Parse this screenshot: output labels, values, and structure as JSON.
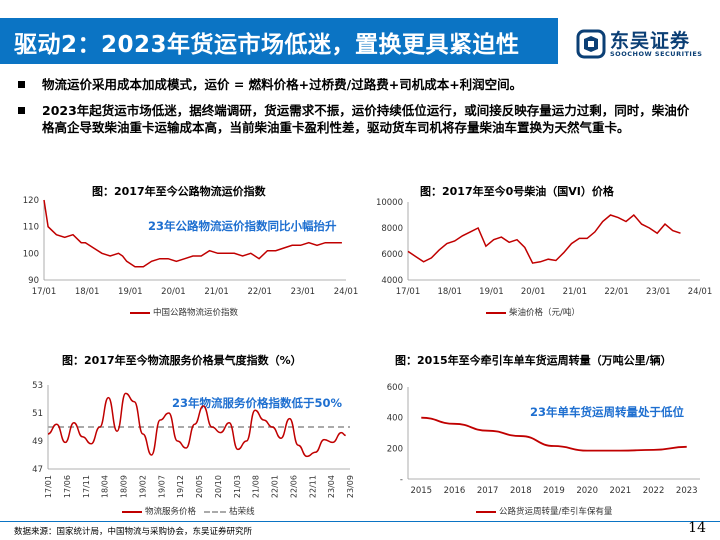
{
  "header": {
    "title": "驱动2：2023年货运市场低迷，置换更具紧迫性",
    "logo_cn": "东吴证券",
    "logo_en": "SOOCHOW SECURITIES"
  },
  "bullets": [
    "物流运价采用成本加成模式，运价 =  燃料价格+过桥费/过路费+司机成本+利润空间。",
    "2023年起货运市场低迷，据终端调研，货运需求不振，运价持续低位运行，或间接反映存量运力过剩，同时，柴油价格高企导致柴油重卡运输成本高，当前柴油重卡盈利性差，驱动货车司机将存量柴油车置换为天然气重卡。"
  ],
  "charts": {
    "c1": {
      "title": "图：2017年至今公路物流运价指数",
      "annotation": "23年公路物流运价指数同比小幅抬升",
      "legend": "中国公路物流运价指数"
    },
    "c2": {
      "title": "图：2017年至今0号柴油（国VI）价格",
      "legend": "柴油价格（元/吨）"
    },
    "c3": {
      "title": "图：2017年至今物流服务价格景气度指数（%）",
      "annotation": "23年物流服务价格指数低于50%",
      "legend": "物流服务价格",
      "legend2": "枯荣线"
    },
    "c4": {
      "title": "图：2015年至今牵引车单车货运周转量（万吨公里/辆）",
      "annotation": "23年单车货运周转量处于低位",
      "legend": "公路货运周转量/牵引车保有量"
    }
  },
  "chart_data": [
    {
      "type": "line",
      "title": "图：2017年至今公路物流运价指数",
      "series": [
        {
          "name": "中国公路物流运价指数",
          "x": [
            2017.0,
            2017.1,
            2017.3,
            2017.5,
            2017.7,
            2017.9,
            2018.0,
            2018.2,
            2018.4,
            2018.6,
            2018.8,
            2018.9,
            2019.0,
            2019.2,
            2019.4,
            2019.6,
            2019.8,
            2020.0,
            2020.2,
            2020.4,
            2020.6,
            2020.8,
            2021.0,
            2021.2,
            2021.4,
            2021.6,
            2021.8,
            2022.0,
            2022.2,
            2022.4,
            2022.6,
            2022.8,
            2023.0,
            2023.2,
            2023.4,
            2023.6,
            2023.8,
            2024.0,
            2024.2
          ],
          "values": [
            120,
            110,
            107,
            106,
            107,
            104,
            104,
            102,
            100,
            99,
            100,
            99,
            97,
            95,
            95,
            97,
            98,
            98,
            97,
            98,
            99,
            99,
            101,
            100,
            100,
            100,
            99,
            100,
            98,
            101,
            101,
            102,
            103,
            103,
            104,
            103,
            104,
            104,
            104
          ]
        }
      ],
      "xticks": [
        "17/01",
        "18/01",
        "19/01",
        "20/01",
        "21/01",
        "22/01",
        "23/01",
        "24/01"
      ],
      "yticks": [
        90,
        100,
        110,
        120
      ],
      "ylim": [
        90,
        120
      ]
    },
    {
      "type": "line",
      "title": "图：2017年至今0号柴油（国VI）价格",
      "series": [
        {
          "name": "柴油价格（元/吨）",
          "x": [
            2017.0,
            2017.2,
            2017.4,
            2017.6,
            2017.8,
            2018.0,
            2018.2,
            2018.4,
            2018.6,
            2018.8,
            2019.0,
            2019.2,
            2019.4,
            2019.6,
            2019.8,
            2020.0,
            2020.2,
            2020.4,
            2020.6,
            2020.8,
            2021.0,
            2021.2,
            2021.4,
            2021.6,
            2021.8,
            2022.0,
            2022.2,
            2022.4,
            2022.6,
            2022.8,
            2023.0,
            2023.2,
            2023.4,
            2023.6,
            2023.8,
            2024.0
          ],
          "values": [
            6200,
            5800,
            5400,
            5700,
            6300,
            6800,
            7000,
            7400,
            7700,
            8000,
            6600,
            7100,
            7300,
            6900,
            7100,
            6500,
            5300,
            5400,
            5600,
            5500,
            6100,
            6800,
            7200,
            7200,
            7700,
            8500,
            9000,
            8800,
            8500,
            9000,
            8300,
            8000,
            7600,
            8300,
            7800,
            7600
          ]
        }
      ],
      "xticks": [
        "17/01",
        "18/01",
        "19/01",
        "20/01",
        "21/01",
        "22/01",
        "23/01",
        "24/01"
      ],
      "yticks": [
        4000,
        6000,
        8000,
        10000
      ],
      "ylim": [
        4000,
        10000
      ]
    },
    {
      "type": "line",
      "title": "图：2017年至今物流服务价格景气度指数（%）",
      "series": [
        {
          "name": "物流服务价格",
          "x": [
            2017.0,
            2017.2,
            2017.4,
            2017.6,
            2017.8,
            2018.0,
            2018.2,
            2018.4,
            2018.6,
            2018.8,
            2019.0,
            2019.2,
            2019.4,
            2019.6,
            2019.8,
            2020.0,
            2020.2,
            2020.4,
            2020.6,
            2020.8,
            2021.0,
            2021.2,
            2021.4,
            2021.6,
            2021.8,
            2022.0,
            2022.2,
            2022.4,
            2022.6,
            2022.8,
            2023.0,
            2023.2,
            2023.4,
            2023.6,
            2023.8,
            2023.9
          ],
          "values": [
            49.5,
            50.2,
            48.9,
            50.3,
            49.3,
            48.8,
            50.0,
            52.1,
            49.7,
            52.4,
            51.8,
            49.5,
            48.0,
            50.5,
            51.0,
            49.0,
            48.5,
            50.2,
            51.5,
            50.0,
            49.6,
            50.3,
            48.4,
            49.0,
            51.2,
            50.5,
            50.0,
            49.2,
            50.6,
            48.7,
            47.9,
            48.2,
            49.1,
            48.9,
            49.6,
            49.4
          ]
        },
        {
          "name": "枯荣线",
          "values": [
            50
          ]
        }
      ],
      "xticks": [
        "17/01",
        "17/06",
        "17/11",
        "18/04",
        "18/09",
        "19/02",
        "19/07",
        "19/12",
        "20/05",
        "20/10",
        "21/03",
        "21/08",
        "22/01",
        "22/06",
        "22/11",
        "23/04",
        "23/09"
      ],
      "yticks": [
        47,
        49,
        51,
        53
      ],
      "ylim": [
        47,
        53
      ]
    },
    {
      "type": "line",
      "title": "图：2015年至今牵引车单车货运周转量（万吨公里/辆）",
      "series": [
        {
          "name": "公路货运周转量/牵引车保有量",
          "x": [
            2015,
            2016,
            2017,
            2018,
            2019,
            2020,
            2021,
            2022,
            2023
          ],
          "values": [
            400,
            360,
            315,
            280,
            215,
            185,
            185,
            190,
            210
          ]
        }
      ],
      "xticks": [
        "2015",
        "2016",
        "2017",
        "2018",
        "2019",
        "2020",
        "2021",
        "2022",
        "2023"
      ],
      "yticks": [
        "-",
        "200",
        "400",
        "600"
      ],
      "ylim": [
        0,
        600
      ]
    }
  ],
  "footer": {
    "source": "数据来源：国家统计局，中国物流与采购协会，东吴证券研究所",
    "page": "14"
  },
  "colors": {
    "brand": "#0b74c4",
    "series": "#c00000",
    "annotation": "#1e6fd0",
    "threshold": "#aaaaaa"
  }
}
